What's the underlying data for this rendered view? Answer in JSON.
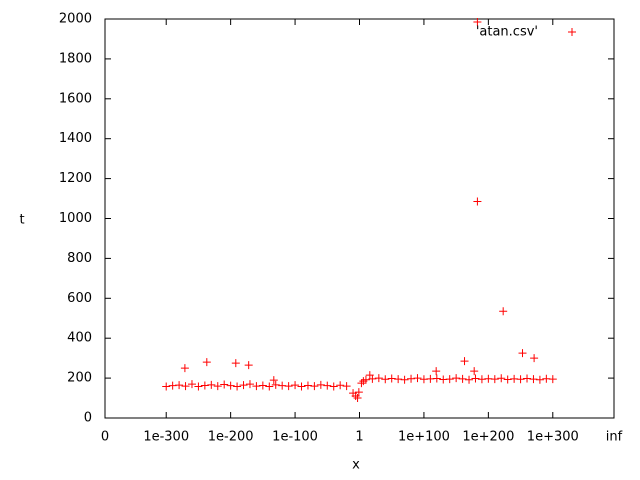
{
  "chart_data": {
    "type": "scatter",
    "x_label": "x",
    "y_label": "t",
    "xlim": [
      -395,
      395
    ],
    "xticks": [
      {
        "value": -395,
        "label": "0"
      },
      {
        "value": -300,
        "label": "1e-300"
      },
      {
        "value": -200,
        "label": "1e-200"
      },
      {
        "value": -100,
        "label": "1e-100"
      },
      {
        "value": 0,
        "label": "1"
      },
      {
        "value": 100,
        "label": "1e+100"
      },
      {
        "value": 200,
        "label": "1e+200"
      },
      {
        "value": 300,
        "label": "1e+300"
      },
      {
        "value": 395,
        "label": "inf"
      }
    ],
    "ylim": [
      0,
      2000
    ],
    "yticks": [
      0,
      200,
      400,
      600,
      800,
      1000,
      1200,
      1400,
      1600,
      1800,
      2000
    ],
    "legend": "top-right",
    "series": [
      {
        "name": "'atan.csv'",
        "color": "#ff0000",
        "x": [
          -300,
          -290,
          -280,
          -270,
          -260,
          -250,
          -240,
          -230,
          -220,
          -210,
          -200,
          -190,
          -180,
          -170,
          -160,
          -150,
          -140,
          -130,
          -120,
          -110,
          -100,
          -90,
          -80,
          -70,
          -60,
          -50,
          -40,
          -30,
          -20,
          -10,
          -6,
          -3,
          -1,
          3,
          6,
          10,
          20,
          30,
          40,
          50,
          60,
          70,
          80,
          90,
          100,
          110,
          120,
          130,
          140,
          150,
          160,
          170,
          180,
          190,
          200,
          210,
          220,
          230,
          240,
          250,
          260,
          270,
          280,
          290,
          300,
          -271,
          -237,
          -192,
          -172,
          -133,
          16,
          119,
          163,
          178,
          183,
          183,
          223,
          253,
          271
        ],
        "values": [
          158,
          162,
          165,
          160,
          170,
          158,
          163,
          166,
          160,
          168,
          162,
          158,
          165,
          170,
          160,
          163,
          158,
          166,
          162,
          160,
          165,
          158,
          163,
          160,
          166,
          162,
          158,
          164,
          160,
          125,
          110,
          100,
          130,
          175,
          185,
          192,
          196,
          200,
          194,
          198,
          195,
          192,
          197,
          200,
          194,
          196,
          198,
          193,
          195,
          200,
          196,
          192,
          198,
          194,
          197,
          195,
          199,
          193,
          196,
          194,
          198,
          195,
          192,
          197,
          195,
          250,
          280,
          275,
          265,
          190,
          215,
          235,
          285,
          235,
          1085,
          1985,
          535,
          325,
          300
        ]
      }
    ]
  }
}
